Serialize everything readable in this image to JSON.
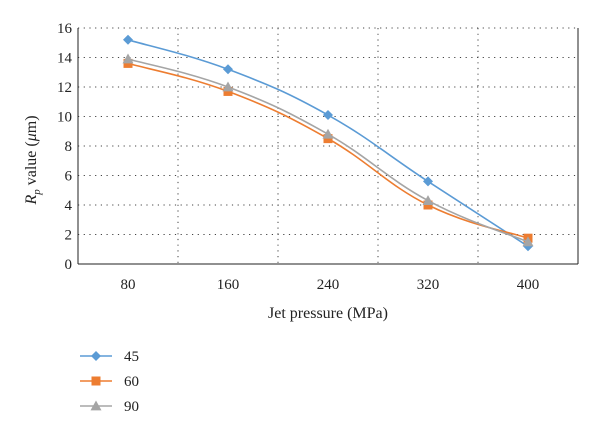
{
  "chart_data": {
    "type": "line",
    "x": [
      80,
      160,
      240,
      320,
      400
    ],
    "series": [
      {
        "name": "45",
        "values": [
          15.2,
          13.2,
          10.1,
          5.6,
          1.2
        ],
        "color": "#5B9BD5",
        "marker": "diamond"
      },
      {
        "name": "60",
        "values": [
          13.6,
          11.7,
          8.5,
          4.0,
          1.75
        ],
        "color": "#ED7D31",
        "marker": "square"
      },
      {
        "name": "90",
        "values": [
          13.9,
          12.0,
          8.8,
          4.3,
          1.5
        ],
        "color": "#A5A5A5",
        "marker": "triangle"
      }
    ],
    "xlabel": "Jet pressure (MPa)",
    "ylabel": {
      "prefix": "R",
      "subscript": "p",
      "middle": " value (",
      "mu": "μ",
      "suffix": "m)"
    },
    "xticks": [
      "80",
      "160",
      "240",
      "320",
      "400"
    ],
    "yticks": [
      "0",
      "2",
      "4",
      "6",
      "8",
      "10",
      "12",
      "14",
      "16"
    ],
    "xlim": [
      40,
      440
    ],
    "ylim": [
      0,
      16
    ],
    "grid": "dotted",
    "legend_position": "bottom-left"
  }
}
